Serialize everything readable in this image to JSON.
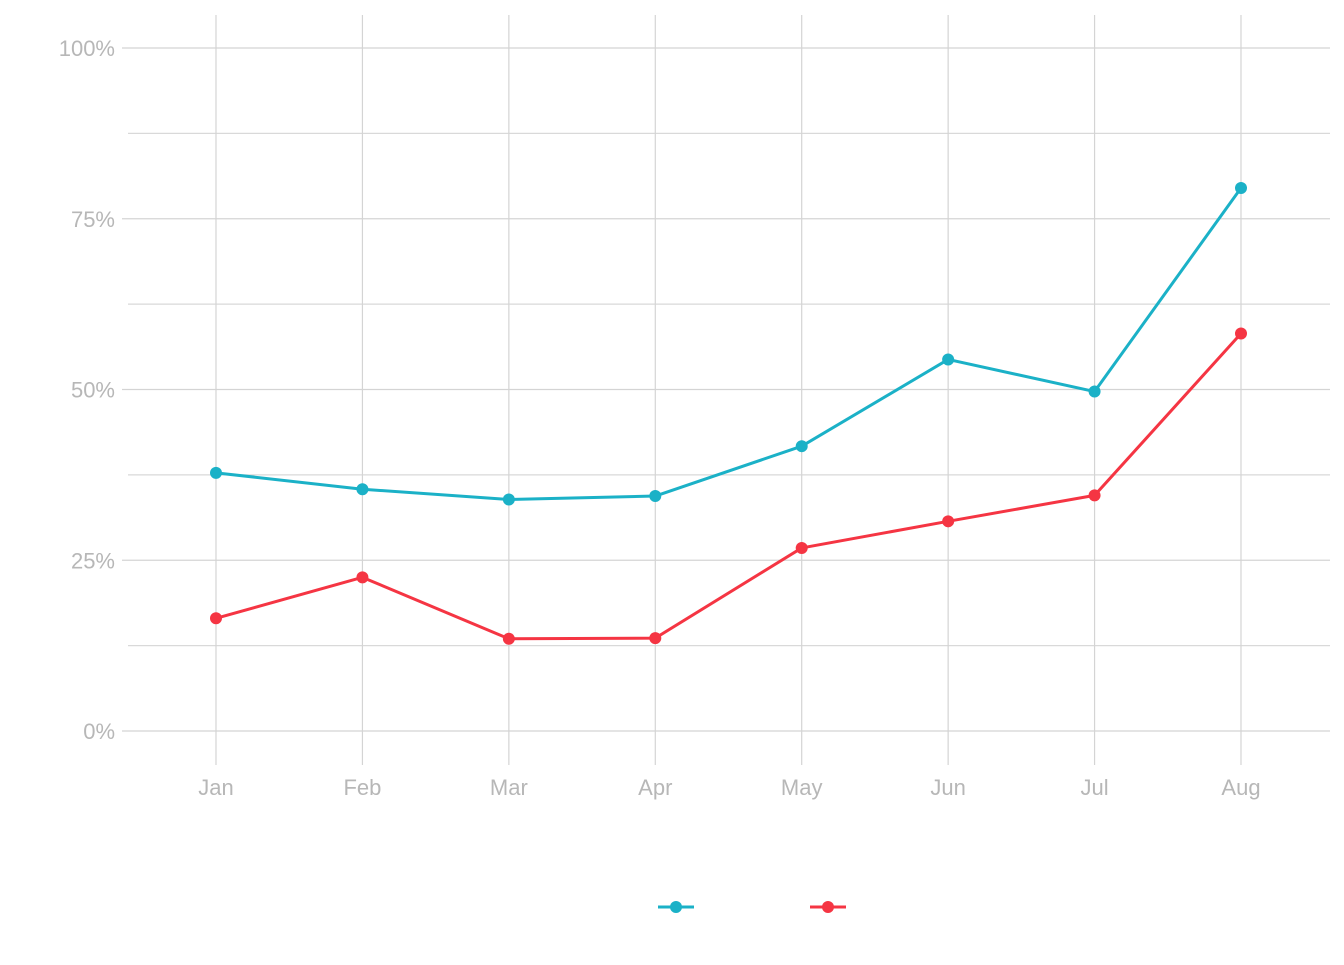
{
  "chart_data": {
    "type": "line",
    "title": "",
    "xlabel": "",
    "ylabel": "",
    "categories": [
      "Jan",
      "Feb",
      "Mar",
      "Apr",
      "May",
      "Jun",
      "Jul",
      "Aug"
    ],
    "ylim": [
      0,
      1
    ],
    "yticks": [
      {
        "value": 0,
        "label": "0%"
      },
      {
        "value": 0.25,
        "label": "25%"
      },
      {
        "value": 0.5,
        "label": "50%"
      },
      {
        "value": 0.75,
        "label": "75%"
      },
      {
        "value": 1,
        "label": "100%"
      }
    ],
    "grid": true,
    "legend_position": "bottom",
    "series": [
      {
        "color": "#1bb1c7",
        "values": [
          0.378,
          0.354,
          0.339,
          0.344,
          0.417,
          0.544,
          0.497,
          0.795
        ]
      },
      {
        "color": "#f53543",
        "values": [
          0.165,
          0.225,
          0.135,
          0.136,
          0.268,
          0.307,
          0.345,
          0.582
        ]
      }
    ]
  }
}
